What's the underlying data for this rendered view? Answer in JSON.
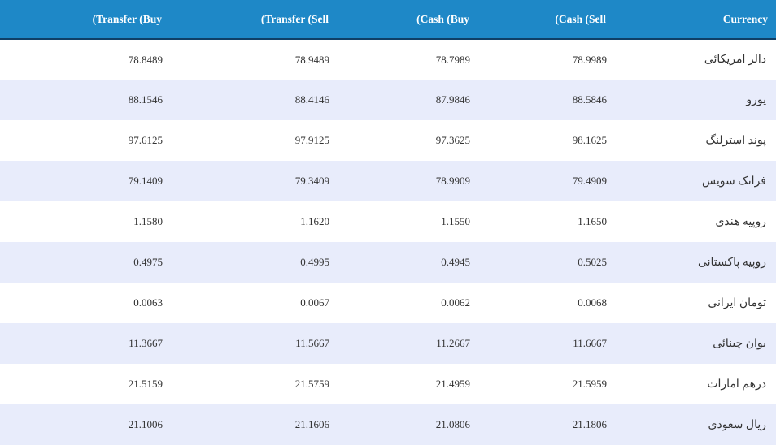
{
  "header": {
    "transfer_buy": "(Transfer (Buy",
    "transfer_sell": "(Transfer (Sell",
    "cash_buy": "(Cash (Buy",
    "cash_sell": "(Cash (Sell",
    "currency": "Currency"
  },
  "rows": [
    {
      "transfer_buy": "78.8489",
      "transfer_sell": "78.9489",
      "cash_buy": "78.7989",
      "cash_sell": "78.9989",
      "currency": "دالر امریکائی"
    },
    {
      "transfer_buy": "88.1546",
      "transfer_sell": "88.4146",
      "cash_buy": "87.9846",
      "cash_sell": "88.5846",
      "currency": "یورو"
    },
    {
      "transfer_buy": "97.6125",
      "transfer_sell": "97.9125",
      "cash_buy": "97.3625",
      "cash_sell": "98.1625",
      "currency": "پوند استرلنگ"
    },
    {
      "transfer_buy": "79.1409",
      "transfer_sell": "79.3409",
      "cash_buy": "78.9909",
      "cash_sell": "79.4909",
      "currency": "فرانک سویس"
    },
    {
      "transfer_buy": "1.1580",
      "transfer_sell": "1.1620",
      "cash_buy": "1.1550",
      "cash_sell": "1.1650",
      "currency": "روپیه هندی"
    },
    {
      "transfer_buy": "0.4975",
      "transfer_sell": "0.4995",
      "cash_buy": "0.4945",
      "cash_sell": "0.5025",
      "currency": "روپیه پاکستانی"
    },
    {
      "transfer_buy": "0.0063",
      "transfer_sell": "0.0067",
      "cash_buy": "0.0062",
      "cash_sell": "0.0068",
      "currency": "تومان ایرانی"
    },
    {
      "transfer_buy": "11.3667",
      "transfer_sell": "11.5667",
      "cash_buy": "11.2667",
      "cash_sell": "11.6667",
      "currency": "یوان چینائی"
    },
    {
      "transfer_buy": "21.5159",
      "transfer_sell": "21.5759",
      "cash_buy": "21.4959",
      "cash_sell": "21.5959",
      "currency": "درهم امارات"
    },
    {
      "transfer_buy": "21.1006",
      "transfer_sell": "21.1606",
      "cash_buy": "21.0806",
      "cash_sell": "21.1806",
      "currency": "ریال سعودی"
    }
  ],
  "colors": {
    "header_bg": "#1e88c7",
    "header_border": "#0f3f66",
    "row_alt_bg": "#e8ecfb"
  }
}
